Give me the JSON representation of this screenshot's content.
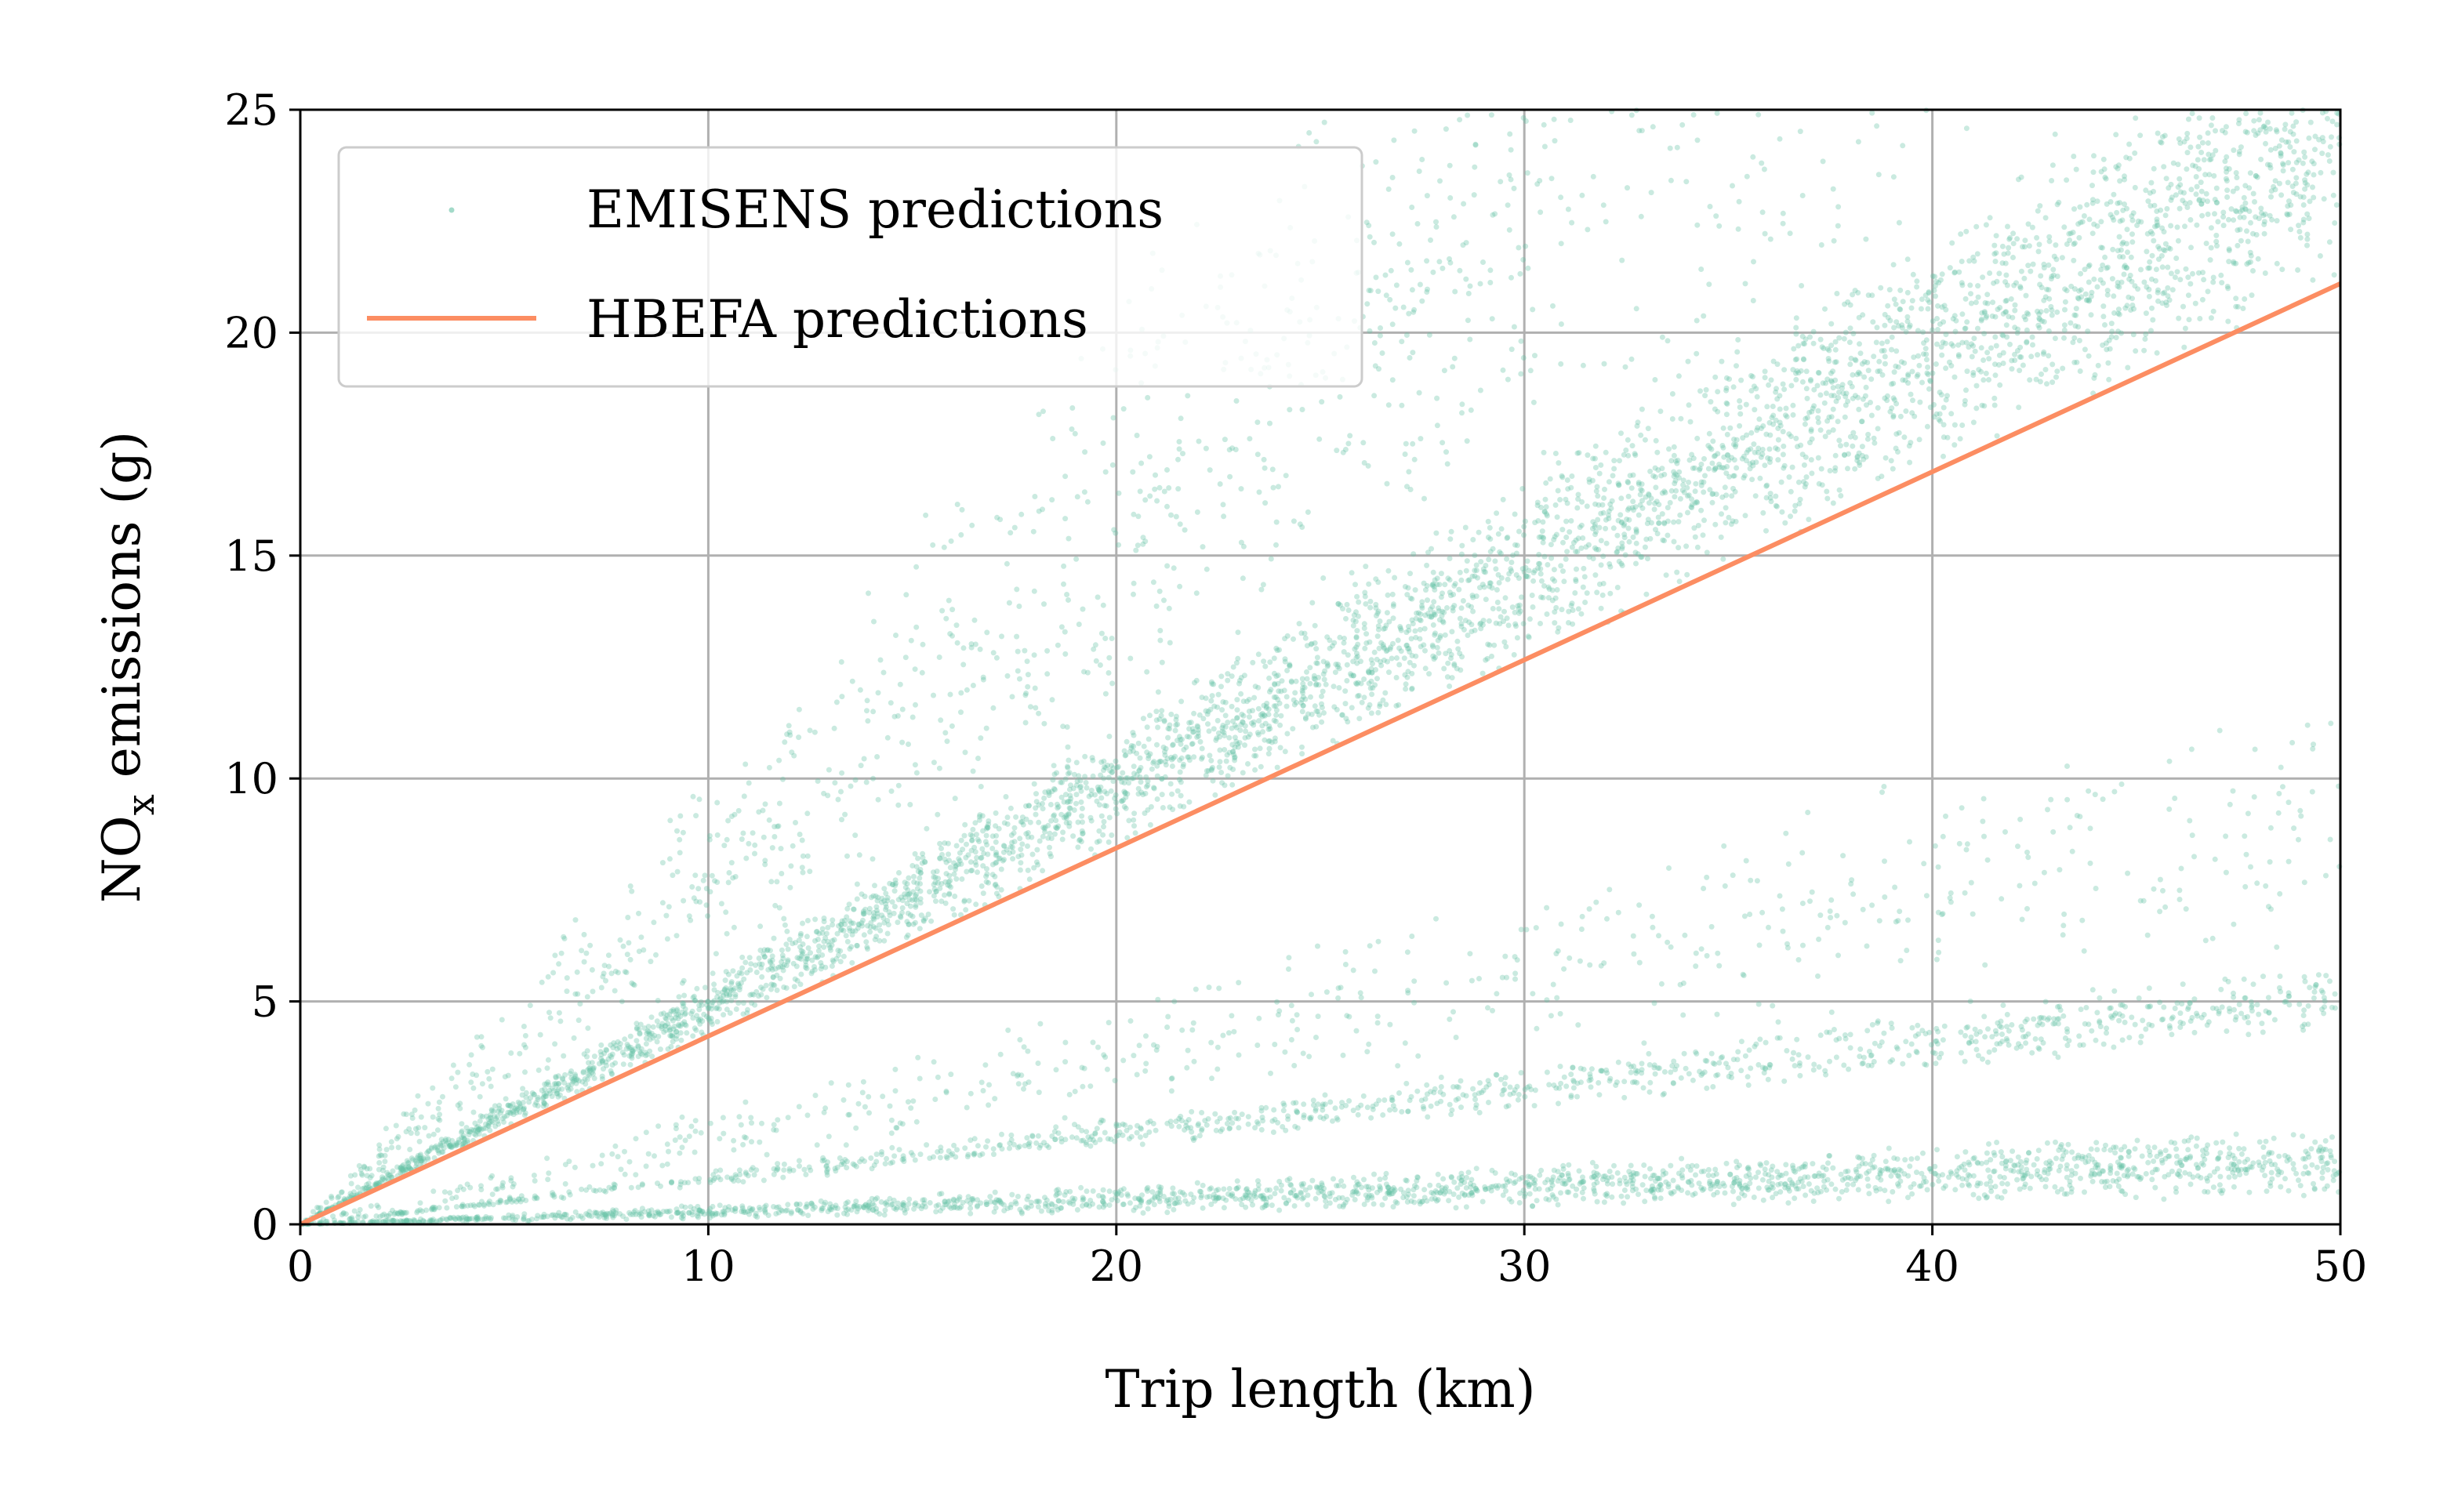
{
  "chart_data": {
    "type": "scatter",
    "title": "",
    "xlabel": "Trip length (km)",
    "ylabel": {
      "base": "NO",
      "subscript": "x",
      "rest": " emissions (g)"
    },
    "xlim": [
      0,
      50
    ],
    "ylim": [
      0,
      25
    ],
    "xticks": [
      0,
      10,
      20,
      30,
      40,
      50
    ],
    "yticks": [
      0,
      5,
      10,
      15,
      20,
      25
    ],
    "grid": true,
    "legend_position": "top-left",
    "series": [
      {
        "name": "EMISENS predictions",
        "kind": "scatter",
        "color": "#66c2a5",
        "clusters": [
          {
            "slope_low": 0.42,
            "slope_high": 0.56,
            "weight": 0.45,
            "note": "dense main band"
          },
          {
            "slope_low": 0.5,
            "slope_high": 1.05,
            "weight": 0.18,
            "note": "upper diffuse band"
          },
          {
            "slope_low": 0.085,
            "slope_high": 0.12,
            "weight": 0.11,
            "note": "middle band"
          },
          {
            "slope_low": 0.012,
            "slope_high": 0.045,
            "weight": 0.2,
            "note": "lower band"
          },
          {
            "slope_low": 0.12,
            "slope_high": 0.26,
            "weight": 0.06,
            "note": "sparse outliers"
          }
        ]
      },
      {
        "name": "HBEFA predictions",
        "kind": "line",
        "color": "#fc8d62",
        "x": [
          0,
          50
        ],
        "y": [
          0,
          21.1
        ]
      }
    ]
  }
}
